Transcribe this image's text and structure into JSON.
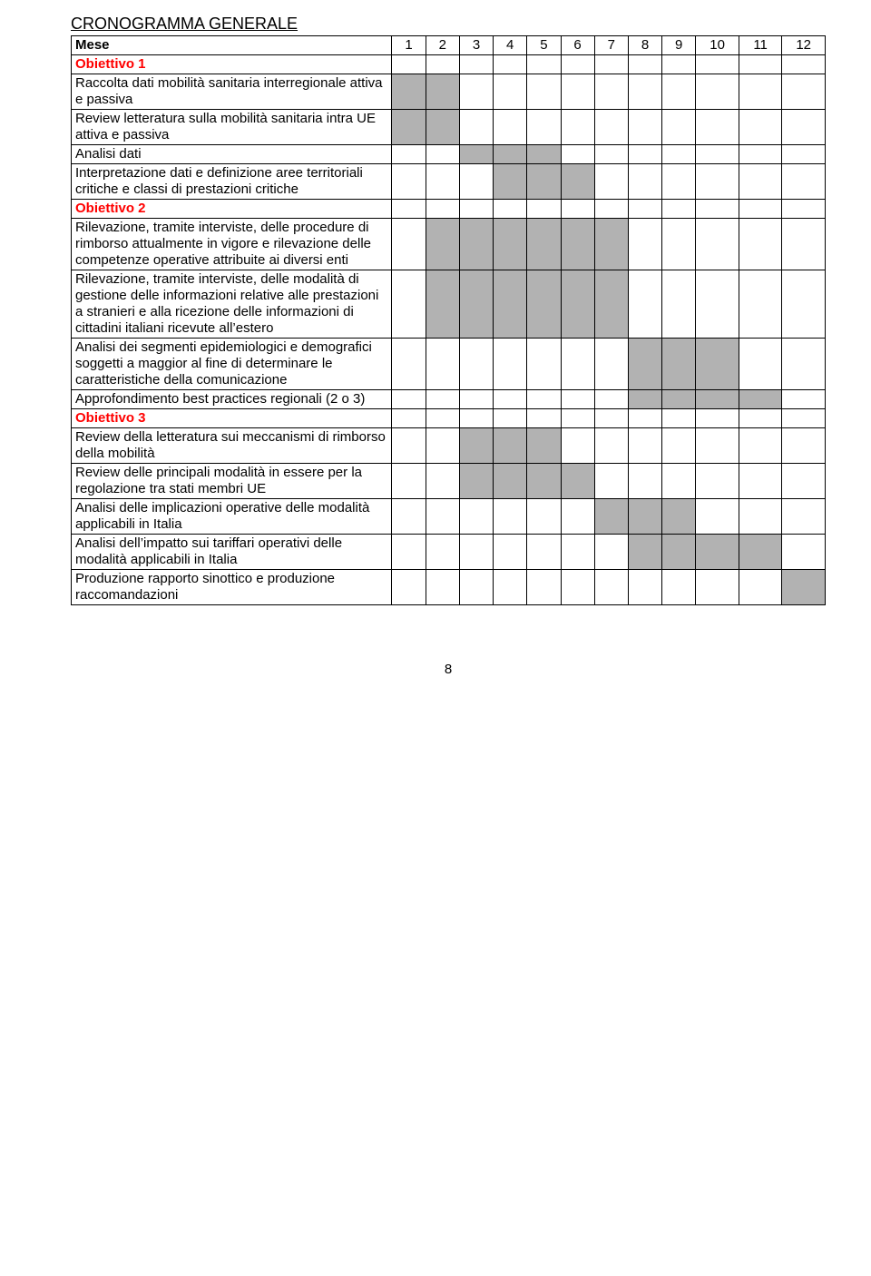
{
  "title": "CRONOGRAMMA GENERALE",
  "header_label": "Mese",
  "months": [
    "1",
    "2",
    "3",
    "4",
    "5",
    "6",
    "7",
    "8",
    "9",
    "10",
    "11",
    "12"
  ],
  "page_number": "8",
  "colors": {
    "fill": "#b2b2b2",
    "objective": "#ff0000",
    "border": "#000000",
    "background": "#ffffff"
  },
  "rows": [
    {
      "type": "objective",
      "label": "Obiettivo 1"
    },
    {
      "type": "task",
      "label": "Raccolta dati mobilità sanitaria interregionale attiva e passiva",
      "fill": [
        1,
        2
      ]
    },
    {
      "type": "task",
      "label": "Review letteratura sulla mobilità sanitaria intra UE attiva e passiva",
      "fill": [
        1,
        2
      ]
    },
    {
      "type": "task",
      "label": "Analisi dati",
      "fill": [
        3,
        4,
        5
      ]
    },
    {
      "type": "task",
      "label": "Interpretazione dati e definizione aree territoriali critiche e classi di prestazioni critiche",
      "fill": [
        4,
        5,
        6
      ]
    },
    {
      "type": "objective",
      "label": "Obiettivo 2"
    },
    {
      "type": "task",
      "label": "Rilevazione, tramite interviste, delle procedure di rimborso attualmente in vigore e rilevazione delle competenze operative attribuite ai diversi enti",
      "fill": [
        2,
        3,
        4,
        5,
        6,
        7
      ]
    },
    {
      "type": "task",
      "label": "Rilevazione, tramite interviste, delle modalità di gestione delle informazioni relative alle prestazioni a stranieri e alla ricezione delle informazioni di cittadini italiani ricevute all’estero",
      "fill": [
        2,
        3,
        4,
        5,
        6,
        7
      ]
    },
    {
      "type": "task",
      "label": "Analisi dei segmenti epidemiologici e demografici soggetti a maggior al fine di determinare le caratteristiche della comunicazione",
      "fill": [
        8,
        9,
        10
      ]
    },
    {
      "type": "task",
      "label": "Approfondimento best practices regionali (2 o 3)",
      "fill": [
        8,
        9,
        10,
        11
      ]
    },
    {
      "type": "objective",
      "label": "Obiettivo 3"
    },
    {
      "type": "task",
      "label": "Review della letteratura sui meccanismi di rimborso della mobilità",
      "fill": [
        3,
        4,
        5
      ]
    },
    {
      "type": "task",
      "label": "Review delle principali modalità in essere per la regolazione tra stati membri UE",
      "fill": [
        3,
        4,
        5,
        6
      ]
    },
    {
      "type": "task",
      "label": "Analisi delle implicazioni operative delle modalità applicabili in Italia",
      "fill": [
        7,
        8,
        9
      ]
    },
    {
      "type": "task",
      "label": "Analisi dell’impatto sui tariffari operativi delle modalità applicabili in Italia",
      "fill": [
        8,
        9,
        10,
        11
      ]
    },
    {
      "type": "task",
      "label": "Produzione rapporto sinottico e produzione raccomandazioni",
      "fill": [
        12
      ]
    }
  ]
}
